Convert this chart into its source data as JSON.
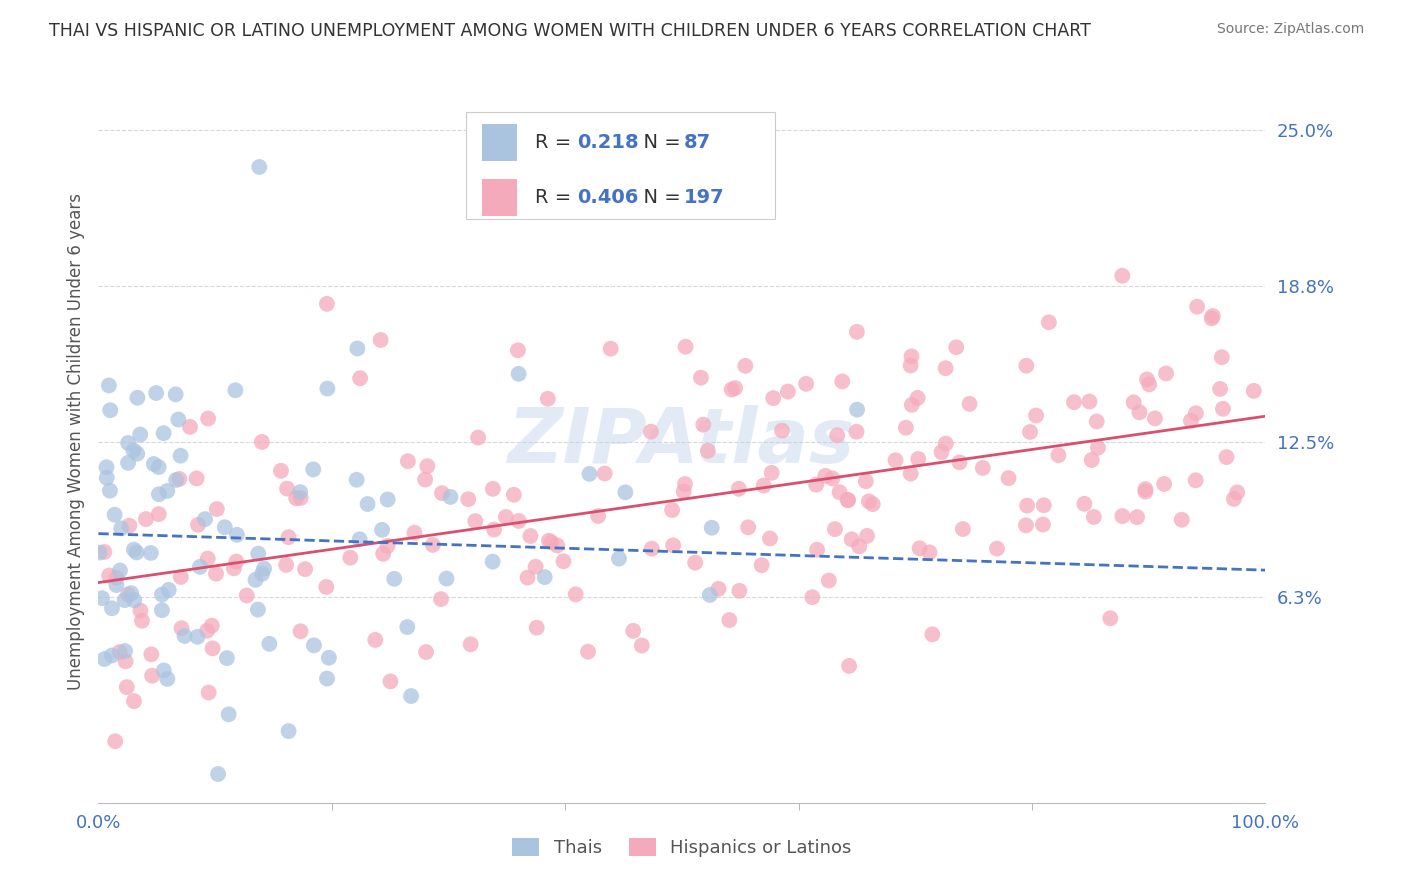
{
  "title": "THAI VS HISPANIC OR LATINO UNEMPLOYMENT AMONG WOMEN WITH CHILDREN UNDER 6 YEARS CORRELATION CHART",
  "source": "Source: ZipAtlas.com",
  "ylabel": "Unemployment Among Women with Children Under 6 years",
  "xlim": [
    0,
    100
  ],
  "ylim": [
    -2,
    27
  ],
  "yticks": [
    6.25,
    12.5,
    18.75,
    25.0
  ],
  "ytick_labels": [
    "6.3%",
    "12.5%",
    "18.8%",
    "25.0%"
  ],
  "xticks": [
    0,
    100
  ],
  "xtick_labels": [
    "0.0%",
    "100.0%"
  ],
  "legend_R1": "0.218",
  "legend_N1": "87",
  "legend_R2": "0.406",
  "legend_N2": "197",
  "series1_label": "Thais",
  "series2_label": "Hispanics or Latinos",
  "series1_color": "#aac4e0",
  "series2_color": "#f5aabb",
  "series1_line_color": "#4472c4",
  "series2_line_color": "#d94f6e",
  "watermark": "ZIPAtlas",
  "background_color": "#ffffff",
  "grid_color": "#d8d8d8",
  "label_color": "#4472c4",
  "seed": 42,
  "thai_N": 87,
  "hispanic_N": 197
}
